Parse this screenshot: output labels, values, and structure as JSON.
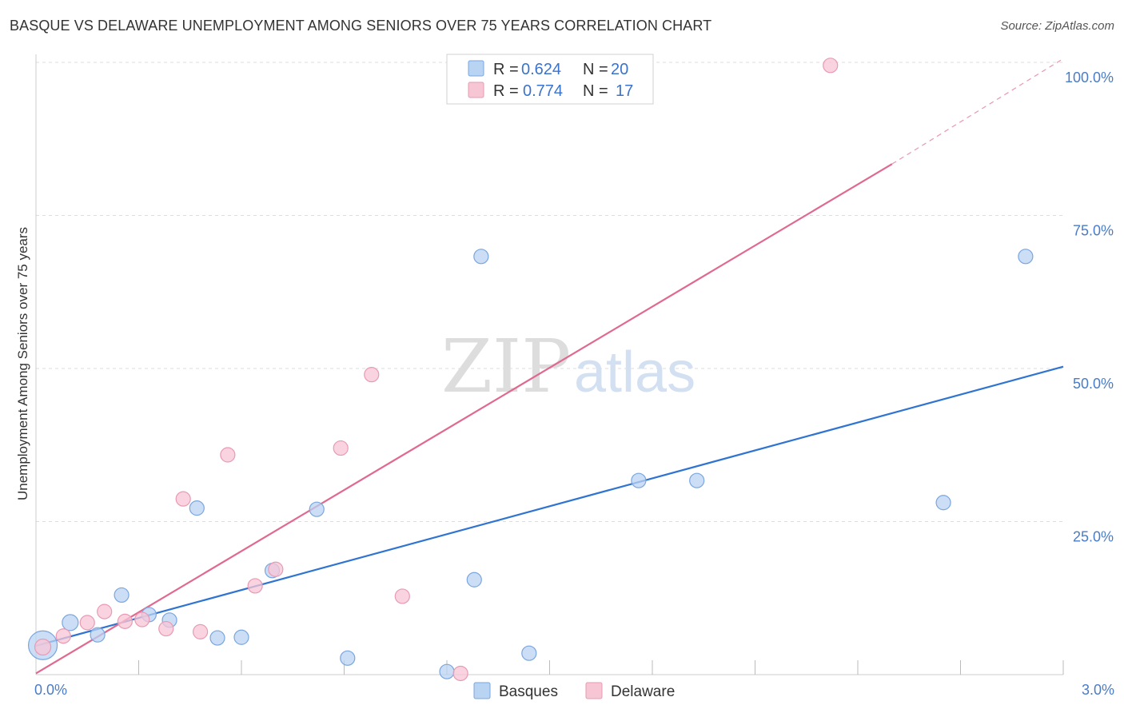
{
  "header": {
    "title": "BASQUE VS DELAWARE UNEMPLOYMENT AMONG SENIORS OVER 75 YEARS CORRELATION CHART",
    "source": "Source: ZipAtlas.com"
  },
  "watermark": {
    "part1": "ZIP",
    "part2": "atlas"
  },
  "legend": {
    "r_label": "R =",
    "n_label": "N =",
    "rows": [
      {
        "series": "Basques",
        "r": "0.624",
        "n": "20"
      },
      {
        "series": "Delaware",
        "r": "0.774",
        "n": "17"
      }
    ]
  },
  "colors": {
    "basques_fill": "#b9d3f3",
    "basques_stroke": "#7aa6df",
    "basques_line": "#2f74d0",
    "delaware_fill": "#f7c6d5",
    "delaware_stroke": "#e99ab2",
    "delaware_line": "#e0698f",
    "grid": "#dddddd",
    "tick_text": "#4a7cc7"
  },
  "chart_data": {
    "type": "scatter",
    "title": "BASQUE VS DELAWARE UNEMPLOYMENT AMONG SENIORS OVER 75 YEARS CORRELATION CHART",
    "xlabel": "",
    "ylabel": "Unemployment Among Seniors over 75 years",
    "xlim": [
      0,
      3.0
    ],
    "ylim": [
      0,
      100
    ],
    "x_tick_labels": [
      {
        "value": 0,
        "label": "0.0%"
      },
      {
        "value": 3.0,
        "label": "3.0%"
      }
    ],
    "y_tick_labels": [
      {
        "value": 25,
        "label": "25.0%"
      },
      {
        "value": 50,
        "label": "50.0%"
      },
      {
        "value": 75,
        "label": "75.0%"
      },
      {
        "value": 100,
        "label": "100.0%"
      }
    ],
    "x_minor_ticks": [
      0.3,
      0.6,
      0.9,
      1.2,
      1.5,
      1.8,
      2.1,
      2.4,
      2.7,
      3.0
    ],
    "grid": true,
    "legend_position": "top-center",
    "series": [
      {
        "name": "Basques",
        "points": [
          {
            "x": 0.02,
            "y": 4.8,
            "size": 18
          },
          {
            "x": 0.1,
            "y": 8.5,
            "size": 10
          },
          {
            "x": 0.18,
            "y": 6.5,
            "size": 9
          },
          {
            "x": 0.25,
            "y": 13.0,
            "size": 9
          },
          {
            "x": 0.33,
            "y": 9.8,
            "size": 9
          },
          {
            "x": 0.39,
            "y": 8.9,
            "size": 9
          },
          {
            "x": 0.47,
            "y": 27.2,
            "size": 9
          },
          {
            "x": 0.53,
            "y": 6.0,
            "size": 9
          },
          {
            "x": 0.6,
            "y": 6.1,
            "size": 9
          },
          {
            "x": 0.69,
            "y": 17.0,
            "size": 9
          },
          {
            "x": 0.82,
            "y": 27.0,
            "size": 9
          },
          {
            "x": 0.91,
            "y": 2.7,
            "size": 9
          },
          {
            "x": 1.2,
            "y": 0.5,
            "size": 9
          },
          {
            "x": 1.28,
            "y": 15.5,
            "size": 9
          },
          {
            "x": 1.3,
            "y": 68.3,
            "size": 9
          },
          {
            "x": 1.44,
            "y": 3.5,
            "size": 9
          },
          {
            "x": 1.76,
            "y": 31.7,
            "size": 9
          },
          {
            "x": 1.93,
            "y": 31.7,
            "size": 9
          },
          {
            "x": 2.65,
            "y": 28.1,
            "size": 9
          },
          {
            "x": 2.89,
            "y": 68.3,
            "size": 9
          }
        ],
        "trend": {
          "x": [
            0,
            3.0
          ],
          "y": [
            4.7,
            50.3
          ],
          "dash_to": null
        }
      },
      {
        "name": "Delaware",
        "points": [
          {
            "x": 0.02,
            "y": 4.5,
            "size": 10
          },
          {
            "x": 0.08,
            "y": 6.3,
            "size": 9
          },
          {
            "x": 0.15,
            "y": 8.5,
            "size": 9
          },
          {
            "x": 0.2,
            "y": 10.3,
            "size": 9
          },
          {
            "x": 0.26,
            "y": 8.7,
            "size": 9
          },
          {
            "x": 0.31,
            "y": 9.0,
            "size": 9
          },
          {
            "x": 0.38,
            "y": 7.5,
            "size": 9
          },
          {
            "x": 0.43,
            "y": 28.7,
            "size": 9
          },
          {
            "x": 0.48,
            "y": 7.0,
            "size": 9
          },
          {
            "x": 0.56,
            "y": 35.9,
            "size": 9
          },
          {
            "x": 0.64,
            "y": 14.5,
            "size": 9
          },
          {
            "x": 0.7,
            "y": 17.2,
            "size": 9
          },
          {
            "x": 0.89,
            "y": 37.0,
            "size": 9
          },
          {
            "x": 0.98,
            "y": 49.0,
            "size": 9
          },
          {
            "x": 1.07,
            "y": 12.8,
            "size": 9
          },
          {
            "x": 1.24,
            "y": 0.2,
            "size": 9
          },
          {
            "x": 2.32,
            "y": 99.5,
            "size": 9
          }
        ],
        "trend": {
          "x": [
            0,
            2.5
          ],
          "y": [
            0.2,
            83.4
          ],
          "dash_to": {
            "x": 3.0,
            "y": 100.6
          }
        }
      }
    ]
  }
}
